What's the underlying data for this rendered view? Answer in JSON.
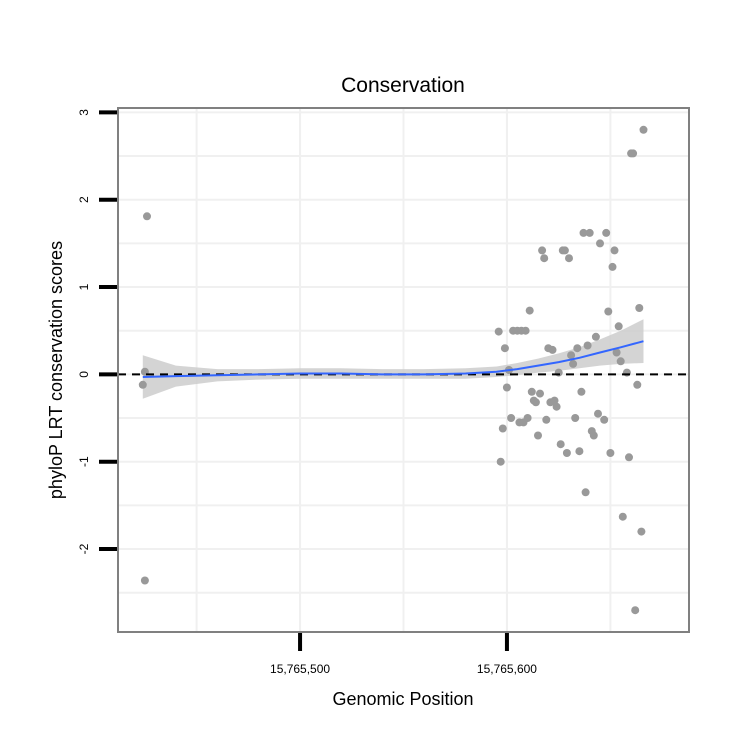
{
  "chart_data": {
    "type": "scatter",
    "title": "Conservation",
    "xlabel": "Genomic Position",
    "ylabel": "phyloP LRT conservation scores",
    "xlim": [
      15765412,
      15765688
    ],
    "ylim": [
      -2.95,
      3.05
    ],
    "x_ticks": [
      {
        "value": 15765500,
        "label": "15,765,500"
      },
      {
        "value": 15765600,
        "label": "15,765,600"
      }
    ],
    "y_ticks": [
      {
        "value": 3,
        "label": "3"
      },
      {
        "value": 2,
        "label": "2"
      },
      {
        "value": 1,
        "label": "1"
      },
      {
        "value": 0,
        "label": "0"
      },
      {
        "value": -1,
        "label": "-1"
      },
      {
        "value": -2,
        "label": "-2"
      }
    ],
    "grid": true,
    "reference_line": {
      "y": 0,
      "style": "dashed"
    },
    "colors": {
      "points": "#999999",
      "smooth_line": "#3366ff",
      "confidence_band": "#cccccc",
      "panel_border": "#808080",
      "grid": "#f0f0f0"
    },
    "points": [
      {
        "x": 15765424,
        "y": -0.12
      },
      {
        "x": 15765425,
        "y": 0.03
      },
      {
        "x": 15765426,
        "y": 1.81
      },
      {
        "x": 15765425,
        "y": -2.36
      },
      {
        "x": 15765596,
        "y": 0.49
      },
      {
        "x": 15765597,
        "y": -1.0
      },
      {
        "x": 15765598,
        "y": -0.62
      },
      {
        "x": 15765599,
        "y": 0.3
      },
      {
        "x": 15765600,
        "y": -0.15
      },
      {
        "x": 15765601,
        "y": 0.05
      },
      {
        "x": 15765602,
        "y": -0.5
      },
      {
        "x": 15765603,
        "y": 0.5
      },
      {
        "x": 15765605,
        "y": 0.5
      },
      {
        "x": 15765606,
        "y": -0.55
      },
      {
        "x": 15765607,
        "y": 0.5
      },
      {
        "x": 15765608,
        "y": -0.55
      },
      {
        "x": 15765609,
        "y": 0.5
      },
      {
        "x": 15765610,
        "y": -0.5
      },
      {
        "x": 15765611,
        "y": 0.73
      },
      {
        "x": 15765612,
        "y": -0.2
      },
      {
        "x": 15765613,
        "y": -0.3
      },
      {
        "x": 15765614,
        "y": -0.32
      },
      {
        "x": 15765615,
        "y": -0.7
      },
      {
        "x": 15765616,
        "y": -0.22
      },
      {
        "x": 15765617,
        "y": 1.42
      },
      {
        "x": 15765618,
        "y": 1.33
      },
      {
        "x": 15765619,
        "y": -0.52
      },
      {
        "x": 15765620,
        "y": 0.3
      },
      {
        "x": 15765621,
        "y": -0.32
      },
      {
        "x": 15765622,
        "y": 0.28
      },
      {
        "x": 15765623,
        "y": -0.3
      },
      {
        "x": 15765624,
        "y": -0.37
      },
      {
        "x": 15765625,
        "y": 0.02
      },
      {
        "x": 15765626,
        "y": -0.8
      },
      {
        "x": 15765627,
        "y": 1.42
      },
      {
        "x": 15765628,
        "y": 1.42
      },
      {
        "x": 15765629,
        "y": -0.9
      },
      {
        "x": 15765630,
        "y": 1.33
      },
      {
        "x": 15765631,
        "y": 0.22
      },
      {
        "x": 15765632,
        "y": 0.12
      },
      {
        "x": 15765633,
        "y": -0.5
      },
      {
        "x": 15765634,
        "y": 0.3
      },
      {
        "x": 15765635,
        "y": -0.88
      },
      {
        "x": 15765636,
        "y": -0.2
      },
      {
        "x": 15765637,
        "y": 1.62
      },
      {
        "x": 15765638,
        "y": -1.35
      },
      {
        "x": 15765639,
        "y": 0.33
      },
      {
        "x": 15765640,
        "y": 1.62
      },
      {
        "x": 15765641,
        "y": -0.65
      },
      {
        "x": 15765642,
        "y": -0.7
      },
      {
        "x": 15765643,
        "y": 0.43
      },
      {
        "x": 15765644,
        "y": -0.45
      },
      {
        "x": 15765645,
        "y": 1.5
      },
      {
        "x": 15765647,
        "y": -0.52
      },
      {
        "x": 15765648,
        "y": 1.62
      },
      {
        "x": 15765649,
        "y": 0.72
      },
      {
        "x": 15765650,
        "y": -0.9
      },
      {
        "x": 15765651,
        "y": 1.23
      },
      {
        "x": 15765652,
        "y": 1.42
      },
      {
        "x": 15765653,
        "y": 0.25
      },
      {
        "x": 15765654,
        "y": 0.55
      },
      {
        "x": 15765655,
        "y": 0.15
      },
      {
        "x": 15765656,
        "y": -1.63
      },
      {
        "x": 15765658,
        "y": 0.02
      },
      {
        "x": 15765659,
        "y": -0.95
      },
      {
        "x": 15765660,
        "y": 2.53
      },
      {
        "x": 15765661,
        "y": 2.53
      },
      {
        "x": 15765662,
        "y": -2.7
      },
      {
        "x": 15765663,
        "y": -0.12
      },
      {
        "x": 15765664,
        "y": 0.76
      },
      {
        "x": 15765665,
        "y": -1.8
      },
      {
        "x": 15765666,
        "y": 2.8
      }
    ],
    "smooth": {
      "x": [
        15765424,
        15765440,
        15765460,
        15765480,
        15765500,
        15765520,
        15765540,
        15765560,
        15765580,
        15765595,
        15765605,
        15765615,
        15765625,
        15765635,
        15765645,
        15765655,
        15765666
      ],
      "y": [
        -0.03,
        -0.02,
        -0.01,
        0.0,
        0.01,
        0.01,
        0.0,
        0.0,
        0.01,
        0.03,
        0.06,
        0.1,
        0.14,
        0.19,
        0.25,
        0.31,
        0.38
      ],
      "lower": [
        -0.28,
        -0.14,
        -0.08,
        -0.06,
        -0.05,
        -0.05,
        -0.05,
        -0.05,
        -0.05,
        -0.03,
        -0.01,
        0.02,
        0.04,
        0.07,
        0.1,
        0.12,
        0.13
      ],
      "upper": [
        0.22,
        0.1,
        0.06,
        0.06,
        0.07,
        0.07,
        0.06,
        0.06,
        0.07,
        0.09,
        0.13,
        0.18,
        0.24,
        0.31,
        0.4,
        0.5,
        0.63
      ]
    }
  }
}
